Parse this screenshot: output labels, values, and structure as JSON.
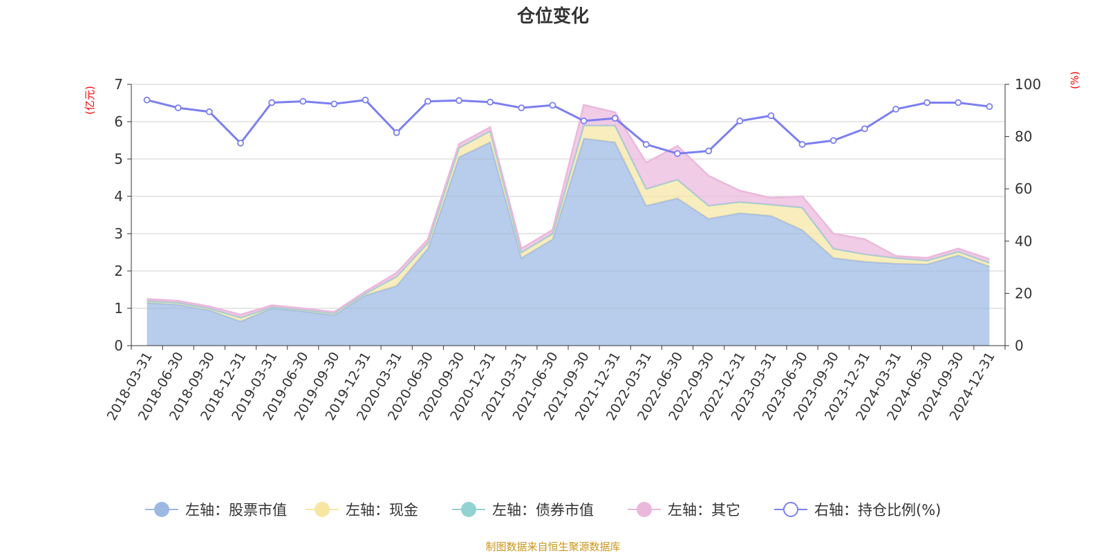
{
  "chart_data": {
    "type": "area",
    "title": "仓位变化",
    "left_unit": "(亿元)",
    "right_unit": "(%)",
    "ylim_left": [
      0,
      7
    ],
    "yticks_left": [
      0,
      1,
      2,
      3,
      4,
      5,
      6,
      7
    ],
    "ylim_right": [
      0,
      100
    ],
    "yticks_right": [
      0,
      20,
      40,
      60,
      80,
      100
    ],
    "grid": true,
    "legend_position": "bottom",
    "categories": [
      "2018-03-31",
      "2018-06-30",
      "2018-09-30",
      "2018-12-31",
      "2019-03-31",
      "2019-06-30",
      "2019-09-30",
      "2019-12-31",
      "2020-03-31",
      "2020-06-30",
      "2020-09-30",
      "2020-12-31",
      "2021-03-31",
      "2021-06-30",
      "2021-09-30",
      "2021-12-31",
      "2022-03-31",
      "2022-06-30",
      "2022-09-30",
      "2022-12-31",
      "2023-03-31",
      "2023-06-30",
      "2023-09-30",
      "2023-12-31",
      "2024-03-31",
      "2024-06-30",
      "2024-09-30",
      "2024-12-31"
    ],
    "series": [
      {
        "name": "左轴：股票市值",
        "axis": "left",
        "type": "stacked-area",
        "color": "#9db9e3",
        "values": [
          1.15,
          1.1,
          0.95,
          0.65,
          1.0,
          0.92,
          0.82,
          1.35,
          1.6,
          2.6,
          5.05,
          5.45,
          2.35,
          2.85,
          5.55,
          5.45,
          3.75,
          3.95,
          3.4,
          3.55,
          3.48,
          3.1,
          2.35,
          2.25,
          2.2,
          2.18,
          2.42,
          2.12
        ]
      },
      {
        "name": "左轴：现金",
        "axis": "left",
        "type": "stacked-area",
        "color": "#f7e6a3",
        "values": [
          0.05,
          0.05,
          0.05,
          0.1,
          0.03,
          0.04,
          0.05,
          0.05,
          0.25,
          0.15,
          0.25,
          0.3,
          0.15,
          0.15,
          0.35,
          0.45,
          0.45,
          0.5,
          0.35,
          0.3,
          0.3,
          0.6,
          0.25,
          0.2,
          0.15,
          0.1,
          0.1,
          0.1
        ]
      },
      {
        "name": "左轴：债券市值",
        "axis": "left",
        "type": "stacked-area",
        "color": "#93d2d2",
        "values": [
          0,
          0,
          0,
          0,
          0,
          0,
          0,
          0,
          0,
          0,
          0,
          0,
          0,
          0,
          0,
          0,
          0,
          0,
          0,
          0,
          0,
          0,
          0,
          0,
          0,
          0,
          0,
          0
        ]
      },
      {
        "name": "左轴：其它",
        "axis": "left",
        "type": "stacked-area",
        "color": "#ebb8dc",
        "values": [
          0.05,
          0.05,
          0.05,
          0.08,
          0.05,
          0.04,
          0.03,
          0.05,
          0.1,
          0.1,
          0.1,
          0.1,
          0.1,
          0.1,
          0.55,
          0.35,
          0.7,
          0.9,
          0.8,
          0.3,
          0.18,
          0.3,
          0.4,
          0.4,
          0.05,
          0.07,
          0.08,
          0.1
        ]
      },
      {
        "name": "右轴：持仓比例(%)",
        "axis": "right",
        "type": "line",
        "color": "#7b7ff0",
        "values": [
          94,
          91,
          89.5,
          77.5,
          93,
          93.5,
          92.5,
          94,
          81.5,
          93.5,
          93.8,
          93.2,
          91,
          92,
          86,
          87,
          77,
          73.5,
          74.5,
          86,
          88,
          77,
          78.5,
          83,
          90.5,
          93,
          93,
          91.5
        ]
      }
    ]
  },
  "source_text": "制图数据来自恒生聚源数据库"
}
